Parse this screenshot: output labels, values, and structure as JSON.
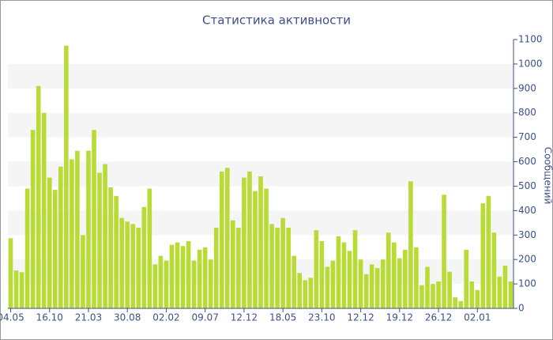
{
  "chart_data": {
    "type": "bar",
    "title": "Статистика активности",
    "y_label": "Сообщений",
    "categories": [
      "04.05",
      null,
      null,
      null,
      null,
      null,
      null,
      "16.10",
      null,
      null,
      null,
      null,
      null,
      null,
      "21.03",
      null,
      null,
      null,
      null,
      null,
      null,
      "30.08",
      null,
      null,
      null,
      null,
      null,
      null,
      "02.02",
      null,
      null,
      null,
      null,
      null,
      null,
      "09.07",
      null,
      null,
      null,
      null,
      null,
      null,
      "12.12",
      null,
      null,
      null,
      null,
      null,
      null,
      "18.05",
      null,
      null,
      null,
      null,
      null,
      null,
      "23.10",
      null,
      null,
      null,
      null,
      null,
      null,
      "12.12",
      null,
      null,
      null,
      null,
      null,
      null,
      "19.12",
      null,
      null,
      null,
      null,
      null,
      null,
      "26.12",
      null,
      null,
      null,
      null,
      null,
      null,
      "02.01",
      null,
      null,
      null,
      null,
      null,
      null
    ],
    "values": [
      287,
      155,
      148,
      490,
      730,
      910,
      800,
      535,
      485,
      580,
      1075,
      610,
      645,
      300,
      645,
      730,
      555,
      590,
      495,
      460,
      370,
      355,
      345,
      330,
      415,
      490,
      180,
      215,
      195,
      260,
      270,
      255,
      275,
      195,
      240,
      250,
      200,
      330,
      560,
      575,
      360,
      330,
      535,
      560,
      480,
      540,
      490,
      345,
      330,
      370,
      330,
      215,
      145,
      115,
      125,
      320,
      275,
      170,
      195,
      295,
      270,
      235,
      320,
      200,
      140,
      180,
      165,
      200,
      310,
      270,
      205,
      240,
      520,
      250,
      95,
      170,
      100,
      110,
      465,
      150,
      45,
      30,
      240,
      110,
      75,
      430,
      460,
      310,
      130,
      175,
      110
    ],
    "color": "#b8dc35",
    "ylim": [
      0,
      1100
    ],
    "yticks": [
      0,
      100,
      200,
      300,
      400,
      500,
      600,
      700,
      800,
      900,
      1000,
      1100
    ],
    "grid": true
  }
}
